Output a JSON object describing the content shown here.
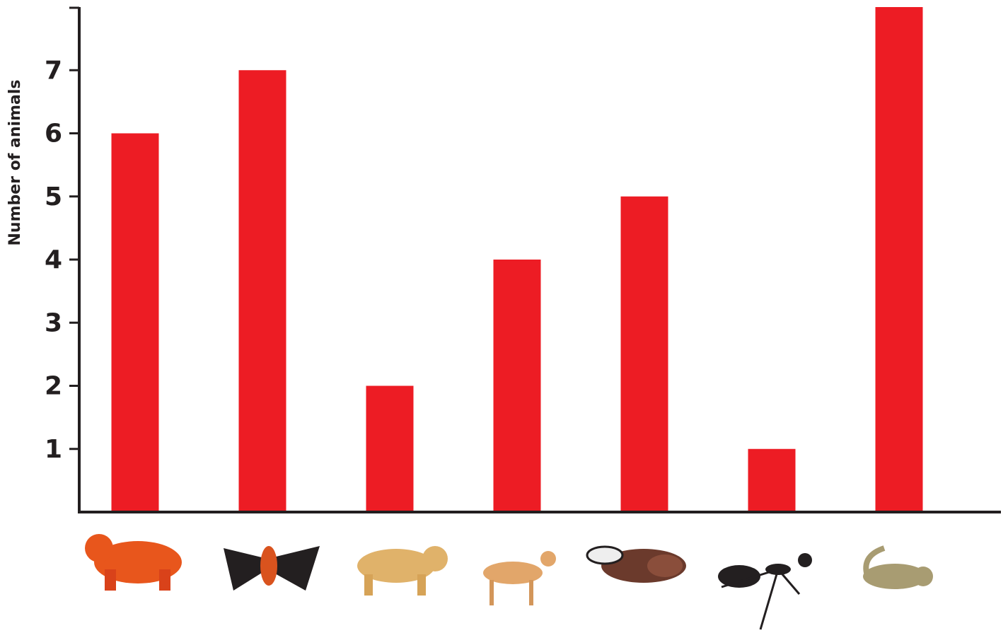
{
  "chart_data": {
    "type": "bar",
    "y_label": "Number of animals",
    "categories": [
      null,
      null,
      null,
      null,
      null,
      null,
      null
    ],
    "values": [
      6,
      7,
      2,
      4,
      5,
      1,
      8
    ],
    "color": "#ed1c24",
    "ylim": [
      0,
      8
    ],
    "yticks": [
      1,
      2,
      3,
      4,
      5,
      6,
      7
    ]
  }
}
